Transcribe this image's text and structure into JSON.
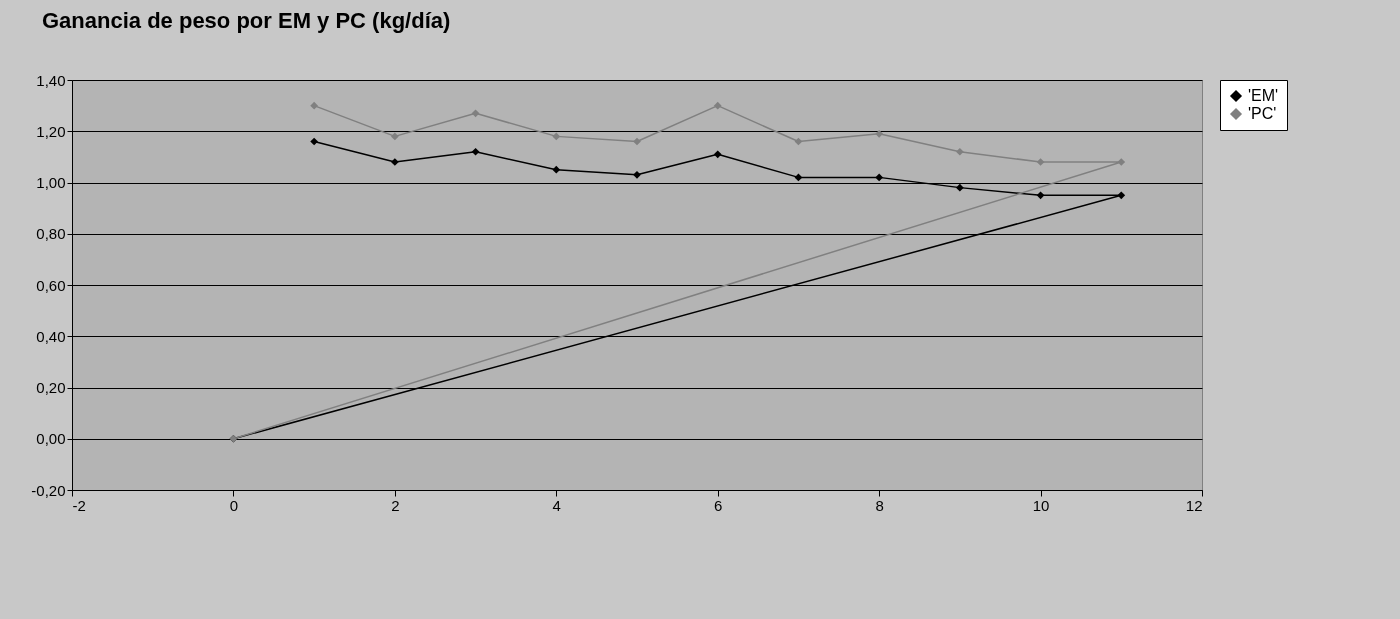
{
  "chart_data": {
    "type": "line",
    "title": "Ganancia de peso por EM y PC (kg/día)",
    "x": [
      1,
      2,
      3,
      4,
      5,
      6,
      7,
      8,
      9,
      10,
      11,
      0
    ],
    "series": [
      {
        "name": "'EM'",
        "color": "#000000",
        "values": [
          1.16,
          1.08,
          1.12,
          1.05,
          1.03,
          1.11,
          1.02,
          1.02,
          0.98,
          0.95,
          0.95,
          0.0
        ]
      },
      {
        "name": "'PC'",
        "color": "#808080",
        "values": [
          1.3,
          1.18,
          1.27,
          1.18,
          1.16,
          1.3,
          1.16,
          1.19,
          1.12,
          1.08,
          1.08,
          0.0
        ]
      }
    ],
    "xlim": [
      -2,
      12
    ],
    "xticks": [
      -2,
      0,
      2,
      4,
      6,
      8,
      10,
      12
    ],
    "ylim": [
      -0.2,
      1.4
    ],
    "yticks": [
      {
        "value": -0.2,
        "label": "-0,20"
      },
      {
        "value": 0,
        "label": "0,00"
      },
      {
        "value": 0.2,
        "label": "0,20"
      },
      {
        "value": 0.4,
        "label": "0,40"
      },
      {
        "value": 0.6,
        "label": "0,60"
      },
      {
        "value": 0.8,
        "label": "0,80"
      },
      {
        "value": 1.0,
        "label": "1,00"
      },
      {
        "value": 1.2,
        "label": "1,20"
      },
      {
        "value": 1.4,
        "label": "1,40"
      }
    ],
    "grid": "y",
    "legend": "right",
    "marker": "diamond"
  }
}
